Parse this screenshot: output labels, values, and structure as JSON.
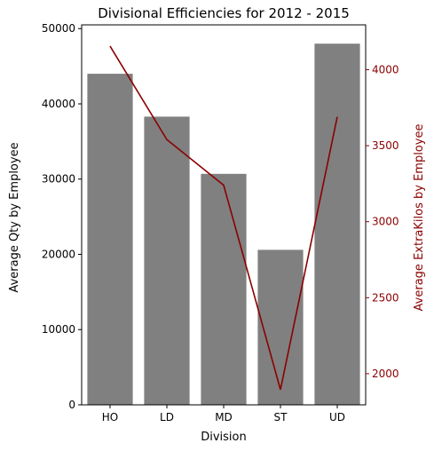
{
  "chart_data": {
    "type": "bar",
    "title": "Divisional Efficiencies for 2012 - 2015",
    "xlabel": "Division",
    "categories": [
      "HO",
      "LD",
      "MD",
      "ST",
      "UD"
    ],
    "bar_series": {
      "name": "Average Qty by Employee",
      "axis": "left",
      "color": "#808080",
      "values": [
        44000,
        38300,
        30700,
        20600,
        48000
      ]
    },
    "line_series": {
      "name": "Average ExtraKilos by Employee",
      "axis": "right",
      "color": "#8b0000",
      "values": [
        4155,
        3540,
        3240,
        1895,
        3690
      ]
    },
    "ylabel_left": "Average Qty by Employee",
    "ylabel_right": "Average ExtraKilos by Employee",
    "ylim_left": [
      0,
      50500
    ],
    "ylim_right": [
      1795,
      4295
    ],
    "yticks_left": [
      0,
      10000,
      20000,
      30000,
      40000,
      50000
    ],
    "yticks_right": [
      2000,
      2500,
      3000,
      3500,
      4000
    ],
    "grid": false,
    "legend": "none"
  }
}
